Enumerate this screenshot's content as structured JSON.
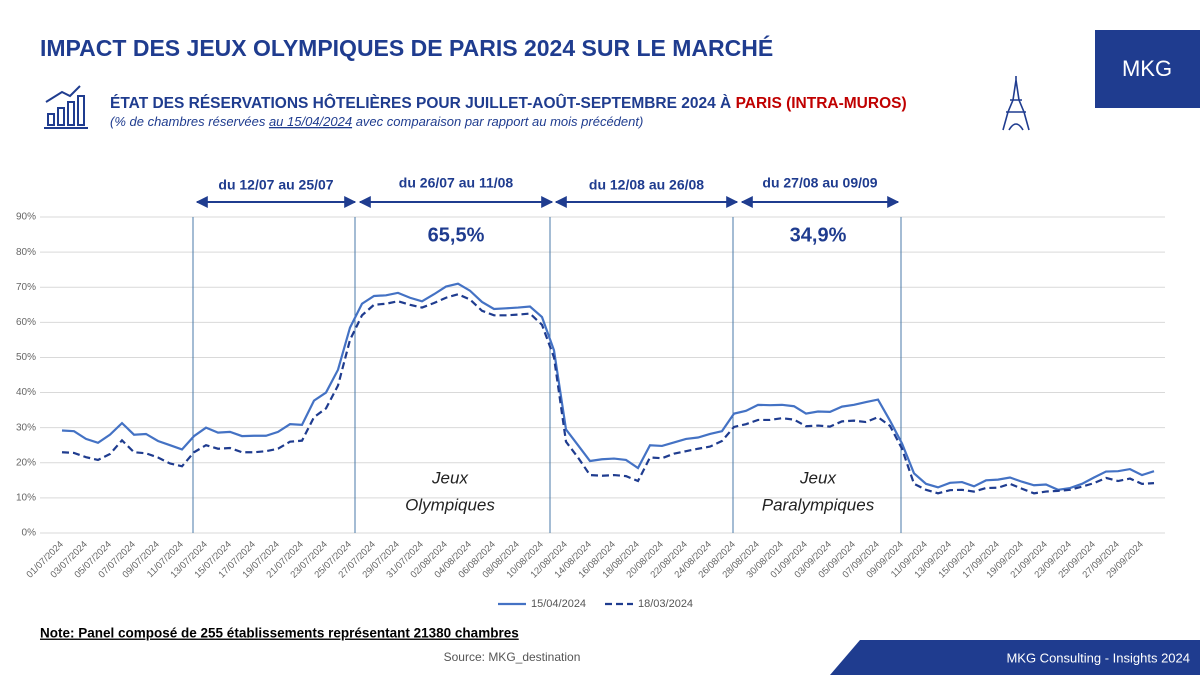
{
  "header": {
    "title": "IMPACT DES JEUX OLYMPIQUES DE PARIS 2024 SUR LE MARCHÉ",
    "logo": "MKG",
    "subtitle": "ÉTAT DES RÉSERVATIONS HÔTELIÈRES POUR JUILLET-AOÛT-SEPTEMBRE 2024 À ",
    "subtitle_highlight": "PARIS (INTRA-MUROS)",
    "subnote": [
      "(% de chambres réservées ",
      "au 15/04/2024",
      " avec comparaison par rapport au mois précédent)"
    ]
  },
  "chart_data": {
    "type": "line",
    "categories": [
      "01/07/2024",
      null,
      "03/07/2024",
      null,
      "05/07/2024",
      null,
      "07/07/2024",
      null,
      "09/07/2024",
      null,
      "11/07/2024",
      null,
      "13/07/2024",
      null,
      "15/07/2024",
      null,
      "17/07/2024",
      null,
      "19/07/2024",
      null,
      "21/07/2024",
      null,
      "23/07/2024",
      null,
      "25/07/2024",
      null,
      "27/07/2024",
      null,
      "29/07/2024",
      null,
      "31/07/2024",
      null,
      "02/08/2024",
      null,
      "04/08/2024",
      null,
      "06/08/2024",
      null,
      "08/08/2024",
      null,
      "10/08/2024",
      null,
      "12/08/2024",
      null,
      "14/08/2024",
      null,
      "16/08/2024",
      null,
      "18/08/2024",
      null,
      "20/08/2024",
      null,
      "22/08/2024",
      null,
      "24/08/2024",
      null,
      "26/08/2024",
      null,
      "28/08/2024",
      null,
      "30/08/2024",
      null,
      "01/09/2024",
      null,
      "03/09/2024",
      null,
      "05/09/2024",
      null,
      "07/09/2024",
      null,
      "09/09/2024",
      null,
      "11/09/2024",
      null,
      "13/09/2024",
      null,
      "15/09/2024",
      null,
      "17/09/2024",
      null,
      "19/09/2024",
      null,
      "21/09/2024",
      null,
      "23/09/2024",
      null,
      "25/09/2024",
      null,
      "27/09/2024",
      null,
      "29/09/2024",
      null
    ],
    "series": [
      {
        "name": "15/04/2024",
        "color": "#4472c4",
        "dash": false,
        "values": [
          29.2,
          29,
          26.8,
          25.7,
          28,
          31.3,
          28,
          28.2,
          26.2,
          25,
          23.8,
          27.6,
          30,
          28.6,
          28.8,
          27.6,
          27.7,
          27.7,
          28.8,
          31,
          30.8,
          37.7,
          40,
          46.5,
          58.5,
          65.3,
          67.5,
          67.7,
          68.4,
          67,
          66,
          68,
          70.2,
          71,
          69,
          65.8,
          63.8,
          64,
          64.2,
          64.5,
          61.5,
          52,
          29.5,
          25,
          20.5,
          21,
          21.2,
          20.8,
          18.5,
          25,
          24.8,
          25.8,
          26.8,
          27.2,
          28.2,
          29,
          34,
          34.8,
          36.5,
          36.4,
          36.5,
          36.1,
          34,
          34.6,
          34.5,
          36,
          36.5,
          37.3,
          38,
          32,
          25.5,
          17,
          14,
          13,
          14.3,
          14.5,
          13.3,
          15,
          15.2,
          15.8,
          14.6,
          13.6,
          13.8,
          12.3,
          12.8,
          14,
          15.8,
          17.5,
          17.6,
          18.2,
          16.5,
          17.6
        ]
      },
      {
        "name": "18/03/2024",
        "color": "#1f3c8f",
        "dash": true,
        "values": [
          23,
          22.8,
          21.6,
          20.8,
          22.5,
          26.4,
          23,
          22.7,
          21.5,
          19.8,
          19,
          23,
          25,
          24,
          24.2,
          23,
          23,
          23.3,
          24,
          26,
          26.3,
          33,
          35.5,
          42,
          55,
          62,
          65,
          65.3,
          66,
          65,
          64.2,
          65.5,
          67,
          68,
          66.5,
          63.3,
          62,
          62,
          62.2,
          62.5,
          59.3,
          50,
          26,
          21.5,
          16.5,
          16.3,
          16.5,
          16.2,
          14.8,
          21.5,
          21.3,
          22.6,
          23.3,
          24,
          24.6,
          26.2,
          30.2,
          31,
          32.2,
          32.2,
          32.7,
          32.3,
          30.4,
          30.6,
          30.3,
          31.8,
          32,
          31.6,
          33,
          30.5,
          24,
          14,
          12.3,
          11.3,
          12.2,
          12.3,
          11.8,
          12.8,
          12.9,
          14,
          12.6,
          11.3,
          11.8,
          12,
          12.3,
          13.2,
          14.2,
          15.7,
          14.8,
          15.5,
          14,
          14.2
        ]
      }
    ],
    "ylim": [
      0,
      90
    ],
    "yticks": [
      {
        "value": 0,
        "label": "0%"
      },
      {
        "value": 10,
        "label": "10%"
      },
      {
        "value": 20,
        "label": "20%"
      },
      {
        "value": 30,
        "label": "30%"
      },
      {
        "value": 40,
        "label": "40%"
      },
      {
        "value": 50,
        "label": "50%"
      },
      {
        "value": 60,
        "label": "60%"
      },
      {
        "value": 70,
        "label": "70%"
      },
      {
        "value": 80,
        "label": "80%"
      },
      {
        "value": 90,
        "label": "90%"
      }
    ],
    "grid": true,
    "legend": "bottom",
    "periods": [
      "du 12/07 au 25/07",
      "du 26/07 au 11/08",
      "du 12/08 au 26/08",
      "du 27/08 au 09/09"
    ],
    "period_rates": [
      "65,5%",
      "34,9%"
    ],
    "events": [
      [
        "Jeux",
        "Olympiques"
      ],
      [
        "Jeux",
        "Paralympiques"
      ]
    ]
  },
  "footer": {
    "note": "Note: Panel composé de 255 établissements représentant 21380 chambres",
    "source": "Source: MKG_destination",
    "brand": "MKG Consulting -  Insights 2024"
  }
}
